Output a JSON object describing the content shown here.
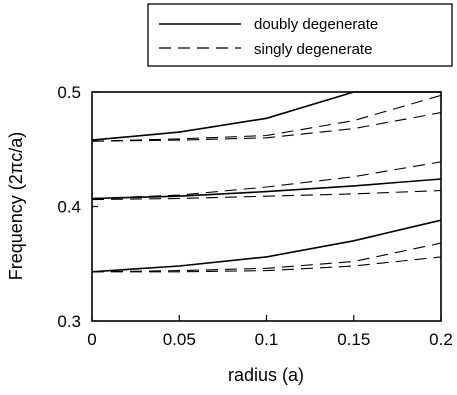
{
  "chart_data": {
    "type": "line",
    "title": "",
    "xlabel": "radius (a)",
    "ylabel": "Frequency (2πc/a)",
    "xlim": [
      0,
      0.2
    ],
    "ylim": [
      0.3,
      0.5
    ],
    "xticks": [
      0,
      0.05,
      0.1,
      0.15,
      0.2
    ],
    "xtick_labels": [
      "0",
      "0.05",
      "0.1",
      "0.15",
      "0.2"
    ],
    "yticks": [
      0.3,
      0.4,
      0.5
    ],
    "ytick_labels": [
      "0.3",
      "0.4",
      "0.5"
    ],
    "grid": false,
    "legend": {
      "placement": "top-right",
      "entries": [
        {
          "label": "doubly degenerate",
          "style": "solid"
        },
        {
          "label": "singly degenerate",
          "style": "dashed"
        }
      ]
    },
    "series": [
      {
        "style": "solid",
        "x": [
          0,
          0.05,
          0.1,
          0.15,
          0.2
        ],
        "y": [
          0.458,
          0.465,
          0.477,
          0.5,
          0.5
        ]
      },
      {
        "style": "solid",
        "x": [
          0,
          0.05,
          0.1,
          0.15,
          0.2
        ],
        "y": [
          0.407,
          0.409,
          0.413,
          0.418,
          0.424
        ]
      },
      {
        "style": "solid",
        "x": [
          0,
          0.05,
          0.1,
          0.15,
          0.2
        ],
        "y": [
          0.343,
          0.348,
          0.356,
          0.37,
          0.388
        ]
      },
      {
        "style": "dashed",
        "x": [
          0,
          0.05,
          0.1,
          0.15,
          0.2
        ],
        "y": [
          0.457,
          0.459,
          0.462,
          0.475,
          0.497
        ]
      },
      {
        "style": "dashed",
        "x": [
          0,
          0.05,
          0.1,
          0.15,
          0.2
        ],
        "y": [
          0.457,
          0.458,
          0.46,
          0.468,
          0.482
        ]
      },
      {
        "style": "dashed",
        "x": [
          0,
          0.05,
          0.1,
          0.15,
          0.2
        ],
        "y": [
          0.407,
          0.41,
          0.417,
          0.426,
          0.439
        ]
      },
      {
        "style": "dashed",
        "x": [
          0,
          0.05,
          0.1,
          0.15,
          0.2
        ],
        "y": [
          0.406,
          0.407,
          0.409,
          0.411,
          0.414
        ]
      },
      {
        "style": "dashed",
        "x": [
          0,
          0.05,
          0.1,
          0.15,
          0.2
        ],
        "y": [
          0.343,
          0.344,
          0.346,
          0.352,
          0.368
        ]
      },
      {
        "style": "dashed",
        "x": [
          0,
          0.05,
          0.1,
          0.15,
          0.2
        ],
        "y": [
          0.343,
          0.343,
          0.344,
          0.348,
          0.356
        ]
      }
    ]
  }
}
